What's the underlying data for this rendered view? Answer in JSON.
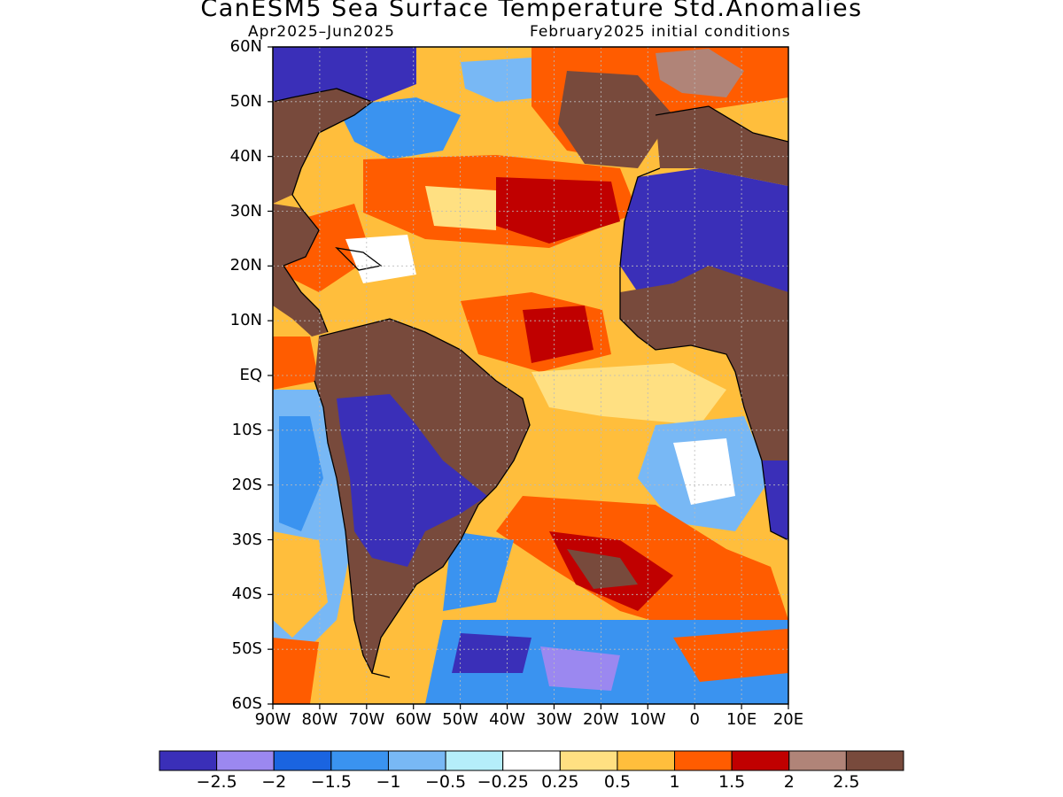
{
  "title": "CanESM5 Sea Surface Temperature Std.Anomalies",
  "subtitle_left": "Apr2025–Jun2025",
  "subtitle_right": "February2025 initial conditions",
  "lat_labels": [
    "60N",
    "50N",
    "40N",
    "30N",
    "20N",
    "10N",
    "EQ",
    "10S",
    "20S",
    "30S",
    "40S",
    "50S",
    "60S"
  ],
  "lon_labels": [
    "90W",
    "80W",
    "70W",
    "60W",
    "50W",
    "40W",
    "30W",
    "20W",
    "10W",
    "0",
    "10E",
    "20E"
  ],
  "colorbar": {
    "colors": [
      "#3a2fb8",
      "#9b88f0",
      "#1a64e0",
      "#3a93f0",
      "#78b8f5",
      "#b5eefa",
      "#ffffff",
      "#ffe082",
      "#ffbe3c",
      "#ff5c00",
      "#c00000",
      "#b08478",
      "#784a3c"
    ],
    "labels": [
      "−2.5",
      "−2",
      "−1.5",
      "−1",
      "−0.5",
      "−0.25",
      "0.25",
      "0.5",
      "1",
      "1.5",
      "2",
      "2.5"
    ]
  },
  "colors": {
    "land": "#784a3c",
    "coastline": "#000000",
    "grid": "#bbbbbb"
  }
}
